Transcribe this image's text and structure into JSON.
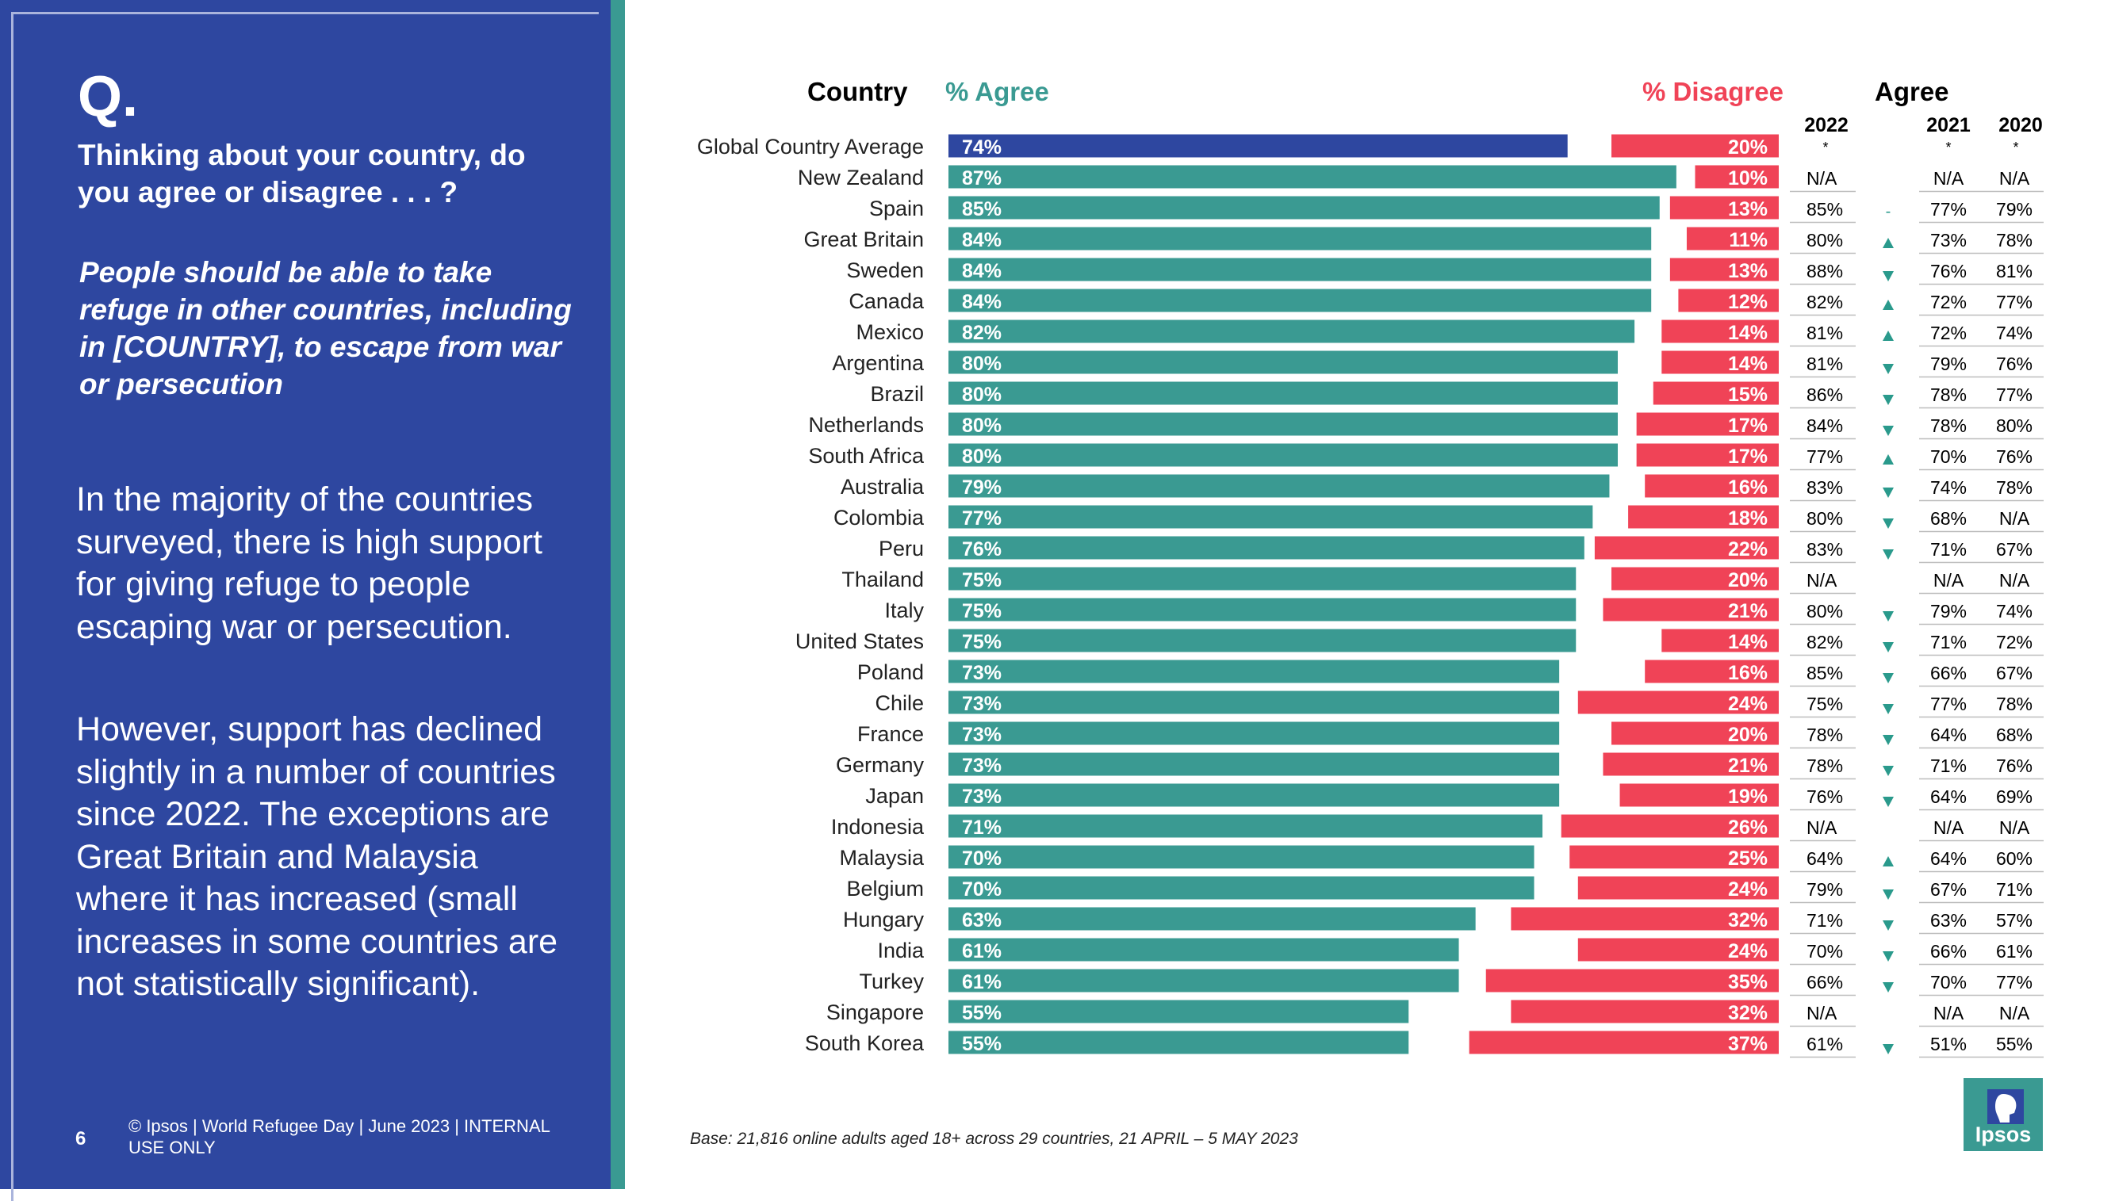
{
  "panel": {
    "q_mark": "Q.",
    "question": "Thinking about your country, do you agree or disagree . . . ?",
    "statement": "People should be able to take refuge in other countries, including in [COUNTRY], to escape from war or persecution",
    "paragraph1": "In the majority of the countries surveyed, there is high support for giving refuge to people escaping war or persecution.",
    "paragraph2": "However, support has declined slightly in a number of countries since 2022. The exceptions are Great Britain and Malaysia where it has increased (small increases in some countries are not statistically significant).",
    "page_number": "6",
    "copyright": "© Ipsos | World Refugee Day | June 2023 | INTERNAL USE ONLY"
  },
  "headers": {
    "country": "Country",
    "agree": "% Agree",
    "disagree": "% Disagree",
    "agree_trend": "Agree",
    "year_2022": "2022",
    "year_2021": "2021",
    "year_2020": "2020",
    "star": "*"
  },
  "base_note": "Base: 21,816 online adults aged 18+ across 29 countries,  21 APRIL – 5 MAY 2023",
  "logo_text": "Ipsos",
  "colors": {
    "panel_blue": "#2e47a0",
    "global_bar": "#2e47a0",
    "agree_bar": "#3a9a92",
    "disagree_bar": "#f04357",
    "trend_arrow": "#2a9a8c"
  },
  "chart_data": {
    "type": "bar",
    "title": "Thinking about your country, do you agree or disagree . . . ?",
    "categories": [
      "Global Country Average",
      "New Zealand",
      "Spain",
      "Great Britain",
      "Sweden",
      "Canada",
      "Mexico",
      "Argentina",
      "Brazil",
      "Netherlands",
      "South Africa",
      "Australia",
      "Colombia",
      "Peru",
      "Thailand",
      "Italy",
      "United States",
      "Poland",
      "Chile",
      "France",
      "Germany",
      "Japan",
      "Indonesia",
      "Malaysia",
      "Belgium",
      "Hungary",
      "India",
      "Turkey",
      "Singapore",
      "South Korea"
    ],
    "series": [
      {
        "name": "% Agree",
        "values": [
          74,
          87,
          85,
          84,
          84,
          84,
          82,
          80,
          80,
          80,
          80,
          79,
          77,
          76,
          75,
          75,
          75,
          73,
          73,
          73,
          73,
          73,
          71,
          70,
          70,
          63,
          61,
          61,
          55,
          55
        ]
      },
      {
        "name": "% Disagree",
        "values": [
          20,
          10,
          13,
          11,
          13,
          12,
          14,
          14,
          15,
          17,
          17,
          16,
          18,
          22,
          20,
          21,
          14,
          16,
          24,
          20,
          21,
          19,
          26,
          25,
          24,
          32,
          24,
          35,
          32,
          37
        ]
      }
    ],
    "trend": {
      "y2022": [
        "",
        "N/A",
        "85%",
        "80%",
        "88%",
        "82%",
        "81%",
        "81%",
        "86%",
        "84%",
        "77%",
        "83%",
        "80%",
        "83%",
        "N/A",
        "80%",
        "82%",
        "85%",
        "75%",
        "78%",
        "78%",
        "76%",
        "N/A",
        "64%",
        "79%",
        "71%",
        "70%",
        "66%",
        "N/A",
        "61%"
      ],
      "direction": [
        "",
        "",
        "-",
        "up",
        "down",
        "up",
        "up",
        "down",
        "down",
        "down",
        "up",
        "down",
        "down",
        "down",
        "",
        "down",
        "down",
        "down",
        "down",
        "down",
        "down",
        "down",
        "",
        "up",
        "down",
        "down",
        "down",
        "down",
        "",
        "down"
      ],
      "y2021": [
        "",
        "N/A",
        "77%",
        "73%",
        "76%",
        "72%",
        "72%",
        "79%",
        "78%",
        "78%",
        "70%",
        "74%",
        "68%",
        "71%",
        "N/A",
        "79%",
        "71%",
        "66%",
        "77%",
        "64%",
        "71%",
        "64%",
        "N/A",
        "64%",
        "67%",
        "63%",
        "66%",
        "70%",
        "N/A",
        "51%"
      ],
      "y2020": [
        "",
        "N/A",
        "79%",
        "78%",
        "81%",
        "77%",
        "74%",
        "76%",
        "77%",
        "80%",
        "76%",
        "78%",
        "N/A",
        "67%",
        "N/A",
        "74%",
        "72%",
        "67%",
        "78%",
        "68%",
        "76%",
        "69%",
        "N/A",
        "60%",
        "71%",
        "57%",
        "61%",
        "77%",
        "N/A",
        "55%"
      ]
    },
    "xlabel": "",
    "ylabel": "",
    "ylim": [
      0,
      100
    ]
  }
}
